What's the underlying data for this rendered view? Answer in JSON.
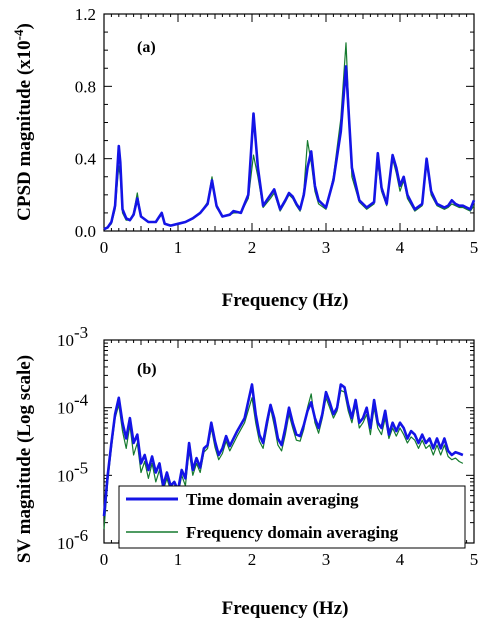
{
  "chart_data": [
    {
      "type": "line",
      "panel_label": "(a)",
      "xlabel": "Frequency (Hz)",
      "ylabel": "CPSD magnitude (x10",
      "ylabel_sup": "-4",
      "ylabel_close": ")",
      "xlim": [
        0,
        5
      ],
      "ylim": [
        0,
        1.2
      ],
      "xticks": [
        "0",
        "1",
        "2",
        "3",
        "4",
        "5"
      ],
      "yticks": [
        "0.0",
        "0.4",
        "0.8",
        "1.2"
      ],
      "yticks_values": [
        0,
        0.4,
        0.8,
        1.2
      ],
      "colors": {
        "time": "#1414e6",
        "freq": "#157a2e"
      },
      "series": [
        {
          "key": "time",
          "x": [
            0,
            0.05,
            0.1,
            0.15,
            0.2,
            0.22,
            0.25,
            0.3,
            0.35,
            0.4,
            0.45,
            0.5,
            0.6,
            0.7,
            0.78,
            0.82,
            0.9,
            1.0,
            1.1,
            1.2,
            1.3,
            1.4,
            1.46,
            1.52,
            1.6,
            1.7,
            1.75,
            1.85,
            1.95,
            2.02,
            2.08,
            2.15,
            2.25,
            2.3,
            2.38,
            2.45,
            2.5,
            2.55,
            2.6,
            2.65,
            2.7,
            2.75,
            2.8,
            2.85,
            2.9,
            3.0,
            3.1,
            3.2,
            3.27,
            3.35,
            3.45,
            3.55,
            3.65,
            3.7,
            3.75,
            3.82,
            3.9,
            3.95,
            4.0,
            4.05,
            4.1,
            4.2,
            4.3,
            4.36,
            4.42,
            4.5,
            4.6,
            4.65,
            4.7,
            4.75,
            4.8,
            4.85,
            4.9,
            4.95,
            5.0
          ],
          "y": [
            0.01,
            0.02,
            0.05,
            0.14,
            0.47,
            0.38,
            0.12,
            0.07,
            0.06,
            0.09,
            0.18,
            0.08,
            0.05,
            0.05,
            0.1,
            0.04,
            0.03,
            0.04,
            0.05,
            0.07,
            0.1,
            0.15,
            0.28,
            0.14,
            0.08,
            0.09,
            0.11,
            0.1,
            0.2,
            0.65,
            0.35,
            0.14,
            0.2,
            0.23,
            0.12,
            0.17,
            0.21,
            0.19,
            0.15,
            0.12,
            0.2,
            0.35,
            0.44,
            0.25,
            0.17,
            0.13,
            0.28,
            0.55,
            0.91,
            0.35,
            0.17,
            0.13,
            0.16,
            0.43,
            0.24,
            0.15,
            0.42,
            0.35,
            0.25,
            0.3,
            0.2,
            0.12,
            0.15,
            0.4,
            0.22,
            0.15,
            0.13,
            0.14,
            0.17,
            0.15,
            0.14,
            0.14,
            0.13,
            0.12,
            0.17
          ]
        },
        {
          "key": "freq",
          "x": [
            0,
            0.05,
            0.1,
            0.15,
            0.2,
            0.22,
            0.25,
            0.3,
            0.35,
            0.4,
            0.45,
            0.5,
            0.6,
            0.7,
            0.78,
            0.82,
            0.9,
            1.0,
            1.1,
            1.2,
            1.3,
            1.4,
            1.46,
            1.52,
            1.6,
            1.7,
            1.75,
            1.85,
            1.95,
            2.02,
            2.08,
            2.15,
            2.25,
            2.3,
            2.38,
            2.45,
            2.5,
            2.55,
            2.6,
            2.65,
            2.7,
            2.75,
            2.8,
            2.85,
            2.9,
            3.0,
            3.1,
            3.2,
            3.27,
            3.35,
            3.45,
            3.55,
            3.65,
            3.7,
            3.75,
            3.82,
            3.9,
            3.95,
            4.0,
            4.05,
            4.1,
            4.2,
            4.3,
            4.36,
            4.42,
            4.5,
            4.6,
            4.65,
            4.7,
            4.75,
            4.8,
            4.85,
            4.9,
            4.95,
            5.0
          ],
          "y": [
            0.01,
            0.02,
            0.04,
            0.12,
            0.36,
            0.3,
            0.1,
            0.06,
            0.06,
            0.1,
            0.21,
            0.08,
            0.05,
            0.05,
            0.09,
            0.04,
            0.03,
            0.04,
            0.05,
            0.07,
            0.1,
            0.16,
            0.3,
            0.13,
            0.08,
            0.09,
            0.1,
            0.1,
            0.18,
            0.42,
            0.3,
            0.13,
            0.18,
            0.21,
            0.11,
            0.16,
            0.2,
            0.18,
            0.14,
            0.11,
            0.22,
            0.5,
            0.38,
            0.22,
            0.15,
            0.12,
            0.3,
            0.62,
            1.04,
            0.3,
            0.16,
            0.12,
            0.15,
            0.38,
            0.22,
            0.14,
            0.4,
            0.32,
            0.22,
            0.28,
            0.18,
            0.11,
            0.14,
            0.38,
            0.2,
            0.14,
            0.12,
            0.13,
            0.15,
            0.14,
            0.13,
            0.13,
            0.12,
            0.11,
            0.14
          ]
        }
      ]
    },
    {
      "type": "line",
      "panel_label": "(b)",
      "xlabel": "Frequency (Hz)",
      "ylabel": "SV magnitude (Log scale)",
      "xlim": [
        0,
        5
      ],
      "ylim": [
        1e-06,
        0.001
      ],
      "yscale": "log",
      "xticks": [
        "0",
        "1",
        "2",
        "3",
        "4",
        "5"
      ],
      "yticks": [
        {
          "base": "10",
          "exp": "-6",
          "value": 1e-06
        },
        {
          "base": "10",
          "exp": "-5",
          "value": 1e-05
        },
        {
          "base": "10",
          "exp": "-4",
          "value": 0.0001
        },
        {
          "base": "10",
          "exp": "-3",
          "value": 0.001
        }
      ],
      "legend": {
        "placement": "bottom",
        "time": "Time domain averaging",
        "freq": "Frequency domain averaging"
      },
      "colors": {
        "time": "#1414e6",
        "freq": "#157a2e"
      },
      "series": [
        {
          "key": "time",
          "x": [
            0,
            0.05,
            0.1,
            0.15,
            0.2,
            0.25,
            0.3,
            0.35,
            0.4,
            0.45,
            0.5,
            0.55,
            0.6,
            0.65,
            0.7,
            0.75,
            0.8,
            0.85,
            0.9,
            0.95,
            1.0,
            1.05,
            1.1,
            1.15,
            1.2,
            1.25,
            1.3,
            1.35,
            1.4,
            1.45,
            1.5,
            1.55,
            1.6,
            1.65,
            1.7,
            1.8,
            1.9,
            2.0,
            2.05,
            2.1,
            2.15,
            2.2,
            2.25,
            2.3,
            2.35,
            2.4,
            2.45,
            2.5,
            2.55,
            2.6,
            2.65,
            2.7,
            2.75,
            2.8,
            2.85,
            2.9,
            2.95,
            3.0,
            3.05,
            3.1,
            3.15,
            3.2,
            3.25,
            3.3,
            3.35,
            3.4,
            3.45,
            3.5,
            3.55,
            3.6,
            3.65,
            3.7,
            3.75,
            3.8,
            3.85,
            3.9,
            3.95,
            4.0,
            4.05,
            4.1,
            4.15,
            4.2,
            4.25,
            4.3,
            4.35,
            4.4,
            4.45,
            4.5,
            4.55,
            4.6,
            4.65,
            4.7,
            4.75,
            4.8,
            4.85
          ],
          "y": [
            2.5e-06,
            1e-05,
            3e-05,
            8e-05,
            0.00014,
            6e-05,
            3.5e-05,
            7e-05,
            3e-05,
            4e-05,
            1.5e-05,
            2e-05,
            1.2e-05,
            1.9e-05,
            1.1e-05,
            1.5e-05,
            7e-06,
            1.1e-05,
            7e-06,
            8e-06,
            6e-06,
            1.2e-05,
            9e-06,
            3e-05,
            1.2e-05,
            1.8e-05,
            1.3e-05,
            2.5e-05,
            2.8e-05,
            6e-05,
            3.2e-05,
            2e-05,
            2.5e-05,
            3.8e-05,
            2.7e-05,
            4.5e-05,
            7e-05,
            0.00022,
            8e-05,
            4e-05,
            3e-05,
            6e-05,
            0.00011,
            7e-05,
            3.5e-05,
            2.8e-05,
            5e-05,
            0.0001,
            6e-05,
            4e-05,
            3.8e-05,
            5.5e-05,
            9e-05,
            0.00012,
            7e-05,
            5e-05,
            8e-05,
            0.00017,
            0.00012,
            8e-05,
            0.0001,
            0.00022,
            0.0002,
            0.00011,
            7e-05,
            0.00013,
            6e-05,
            7e-05,
            0.0001,
            5e-05,
            0.00013,
            6e-05,
            5e-05,
            9e-05,
            4e-05,
            6e-05,
            4.5e-05,
            6e-05,
            5e-05,
            3.5e-05,
            4.5e-05,
            4e-05,
            3e-05,
            4e-05,
            3e-05,
            3.5e-05,
            2.5e-05,
            3.5e-05,
            2.5e-05,
            3.5e-05,
            2.3e-05,
            2e-05,
            2.2e-05,
            2.1e-05,
            2e-05
          ]
        },
        {
          "key": "freq",
          "x": [
            0,
            0.05,
            0.1,
            0.15,
            0.2,
            0.25,
            0.3,
            0.35,
            0.4,
            0.45,
            0.5,
            0.55,
            0.6,
            0.65,
            0.7,
            0.75,
            0.8,
            0.85,
            0.9,
            0.95,
            1.0,
            1.05,
            1.1,
            1.15,
            1.2,
            1.25,
            1.3,
            1.35,
            1.4,
            1.45,
            1.5,
            1.55,
            1.6,
            1.65,
            1.7,
            1.8,
            1.9,
            2.0,
            2.05,
            2.1,
            2.15,
            2.2,
            2.25,
            2.3,
            2.35,
            2.4,
            2.45,
            2.5,
            2.55,
            2.6,
            2.65,
            2.7,
            2.75,
            2.8,
            2.85,
            2.9,
            2.95,
            3.0,
            3.05,
            3.1,
            3.15,
            3.2,
            3.25,
            3.3,
            3.35,
            3.4,
            3.45,
            3.5,
            3.55,
            3.6,
            3.65,
            3.7,
            3.75,
            3.8,
            3.85,
            3.9,
            3.95,
            4.0,
            4.05,
            4.1,
            4.15,
            4.2,
            4.25,
            4.3,
            4.35,
            4.4,
            4.45,
            4.5,
            4.55,
            4.6,
            4.65,
            4.7,
            4.75,
            4.8,
            4.85
          ],
          "y": [
            1.6e-06,
            8e-06,
            2.5e-05,
            7e-05,
            0.00011,
            4.5e-05,
            2.5e-05,
            5.5e-05,
            2e-05,
            3e-05,
            1.1e-05,
            1.6e-05,
            9e-06,
            1.5e-05,
            8e-06,
            1.2e-05,
            6e-06,
            9e-06,
            6e-06,
            7e-06,
            5e-06,
            1e-05,
            7e-06,
            2.3e-05,
            1e-05,
            1.5e-05,
            1.1e-05,
            2.2e-05,
            2.5e-05,
            5e-05,
            2.6e-05,
            1.7e-05,
            2.1e-05,
            3.2e-05,
            2.3e-05,
            3.8e-05,
            6e-05,
            0.00014,
            6e-05,
            3.2e-05,
            2.5e-05,
            5e-05,
            0.0001,
            5.5e-05,
            2.8e-05,
            2.3e-05,
            4e-05,
            8e-05,
            5e-05,
            3.3e-05,
            3.2e-05,
            4.8e-05,
            0.0001,
            0.00016,
            6e-05,
            4.2e-05,
            7e-05,
            0.00014,
            0.0001,
            7e-05,
            9e-05,
            0.00018,
            0.00017,
            9e-05,
            6e-05,
            0.00011,
            5e-05,
            6e-05,
            8e-05,
            4e-05,
            0.0001,
            5e-05,
            4e-05,
            7e-05,
            3.5e-05,
            5e-05,
            3.8e-05,
            5e-05,
            4e-05,
            3e-05,
            3.7e-05,
            3.3e-05,
            2.5e-05,
            3.3e-05,
            2.5e-05,
            2.8e-05,
            2e-05,
            2.8e-05,
            2e-05,
            2.8e-05,
            1.9e-05,
            1.7e-05,
            1.8e-05,
            1.6e-05,
            1.5e-05
          ]
        }
      ]
    }
  ]
}
